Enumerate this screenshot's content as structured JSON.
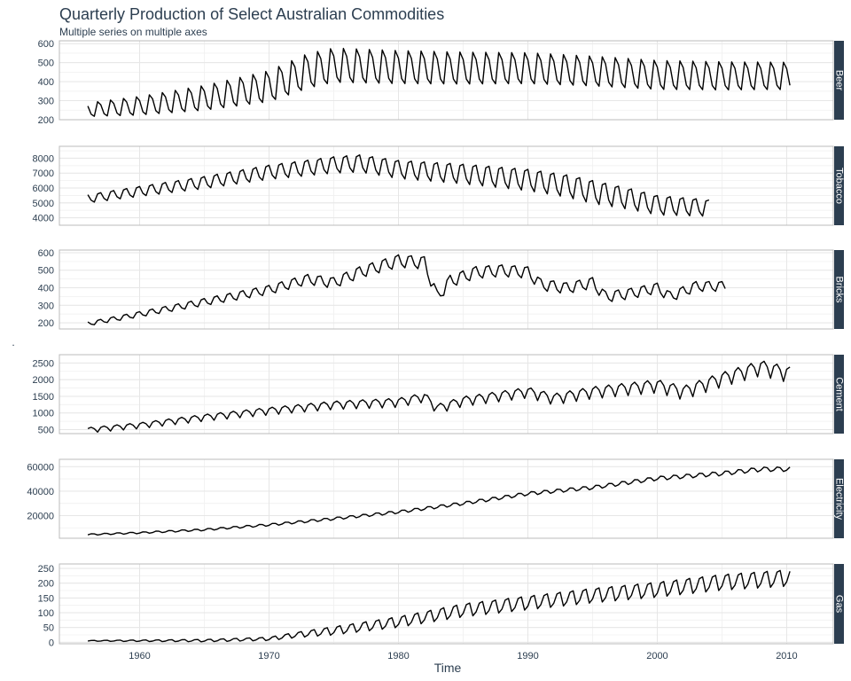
{
  "chart_data": {
    "type": "line",
    "title": "Quarterly Production of Select Australian Commodities",
    "subtitle": "Multiple series on multiple axes",
    "xlabel": "Time",
    "ylabel": ".",
    "xlim": [
      1953.8,
      2013.6
    ],
    "x_ticks": [
      1960,
      1970,
      1980,
      1990,
      2000,
      2010
    ],
    "x_tick_labels": [
      "1960",
      "1970",
      "1980",
      "1990",
      "2000",
      "2010"
    ],
    "grid": true,
    "colors": {
      "line": "#000000",
      "strip": "#2c3e50",
      "text": "#2c3e50",
      "grid": "#e6e6e6",
      "border": "#bbbbbb"
    },
    "facets": [
      {
        "name": "Beer",
        "ylim": [
          200,
          615
        ],
        "y_ticks": [
          200,
          300,
          400,
          500,
          600
        ],
        "y_tick_labels": [
          "200",
          "300",
          "400",
          "500",
          "600"
        ],
        "start": 1956.0,
        "end": 2010.25,
        "trend_knots": [
          [
            1956,
            250
          ],
          [
            1960,
            270
          ],
          [
            1965,
            310
          ],
          [
            1970,
            370
          ],
          [
            1973,
            450
          ],
          [
            1975,
            480
          ],
          [
            1980,
            470
          ],
          [
            1985,
            465
          ],
          [
            1990,
            465
          ],
          [
            1995,
            450
          ],
          [
            2000,
            430
          ],
          [
            2005,
            425
          ],
          [
            2010.25,
            425
          ]
        ],
        "seasonal": [
          40,
          -40,
          -60,
          70
        ],
        "seasonal_scale": [
          [
            1956,
            0.55
          ],
          [
            1973,
            1.4
          ],
          [
            1995,
            1.2
          ],
          [
            2010.25,
            1.1
          ]
        ]
      },
      {
        "name": "Tobacco",
        "ylim": [
          3500,
          8800
        ],
        "y_ticks": [
          4000,
          5000,
          6000,
          7000,
          8000
        ],
        "y_tick_labels": [
          "4000",
          "5000",
          "6000",
          "7000",
          "8000"
        ],
        "start": 1956.0,
        "end": 2004.0,
        "trend_knots": [
          [
            1956,
            5300
          ],
          [
            1960,
            5800
          ],
          [
            1965,
            6400
          ],
          [
            1970,
            7100
          ],
          [
            1975,
            7600
          ],
          [
            1977,
            7700
          ],
          [
            1980,
            7300
          ],
          [
            1985,
            7000
          ],
          [
            1990,
            6600
          ],
          [
            1993,
            6200
          ],
          [
            1995,
            5800
          ],
          [
            1998,
            5300
          ],
          [
            2000,
            4900
          ],
          [
            2004,
            4700
          ]
        ],
        "seasonal": [
          500,
          -300,
          -600,
          400
        ],
        "seasonal_scale": [
          [
            1956,
            0.5
          ],
          [
            1975,
            1.0
          ],
          [
            1995,
            1.4
          ],
          [
            2004,
            1.0
          ]
        ]
      },
      {
        "name": "Bricks",
        "ylim": [
          165,
          615
        ],
        "y_ticks": [
          200,
          300,
          400,
          500,
          600
        ],
        "y_tick_labels": [
          "200",
          "300",
          "400",
          "500",
          "600"
        ],
        "start": 1956.0,
        "end": 2005.25,
        "trend_knots": [
          [
            1956,
            195
          ],
          [
            1960,
            250
          ],
          [
            1965,
            320
          ],
          [
            1970,
            390
          ],
          [
            1973,
            450
          ],
          [
            1975,
            430
          ],
          [
            1977,
            490
          ],
          [
            1980,
            555
          ],
          [
            1982,
            545
          ],
          [
            1983,
            350
          ],
          [
            1984,
            440
          ],
          [
            1986,
            490
          ],
          [
            1988,
            500
          ],
          [
            1990,
            490
          ],
          [
            1991,
            420
          ],
          [
            1993,
            400
          ],
          [
            1995,
            430
          ],
          [
            1996,
            350
          ],
          [
            1998,
            370
          ],
          [
            2000,
            400
          ],
          [
            2001,
            350
          ],
          [
            2003,
            410
          ],
          [
            2005.25,
            410
          ]
        ],
        "seasonal": [
          25,
          -15,
          -30,
          20
        ],
        "seasonal_scale": [
          [
            1956,
            0.4
          ],
          [
            1980,
            1.3
          ],
          [
            2005.25,
            1.0
          ]
        ]
      },
      {
        "name": "Cement",
        "ylim": [
          380,
          2750
        ],
        "y_ticks": [
          500,
          1000,
          1500,
          2000,
          2500
        ],
        "y_tick_labels": [
          "500",
          "1000",
          "1500",
          "2000",
          "2500"
        ],
        "start": 1956.0,
        "end": 2010.25,
        "trend_knots": [
          [
            1956,
            500
          ],
          [
            1960,
            640
          ],
          [
            1965,
            880
          ],
          [
            1970,
            1080
          ],
          [
            1975,
            1260
          ],
          [
            1980,
            1340
          ],
          [
            1982,
            1500
          ],
          [
            1983,
            1150
          ],
          [
            1985,
            1380
          ],
          [
            1990,
            1650
          ],
          [
            1992,
            1450
          ],
          [
            1995,
            1650
          ],
          [
            2000,
            1850
          ],
          [
            2002,
            1650
          ],
          [
            2005,
            2050
          ],
          [
            2008,
            2400
          ],
          [
            2010.25,
            2200
          ]
        ],
        "seasonal": [
          60,
          120,
          20,
          -200
        ],
        "seasonal_scale": [
          [
            1956,
            0.5
          ],
          [
            1990,
            1.0
          ],
          [
            2010.25,
            1.5
          ]
        ]
      },
      {
        "name": "Electricity",
        "ylim": [
          1500,
          66000
        ],
        "y_ticks": [
          20000,
          40000,
          60000
        ],
        "y_tick_labels": [
          "20000",
          "40000",
          "60000"
        ],
        "start": 1956.0,
        "end": 2010.25,
        "trend_knots": [
          [
            1956,
            4500
          ],
          [
            1960,
            6000
          ],
          [
            1965,
            8500
          ],
          [
            1970,
            12500
          ],
          [
            1975,
            17500
          ],
          [
            1980,
            23000
          ],
          [
            1985,
            30000
          ],
          [
            1990,
            38000
          ],
          [
            1995,
            43000
          ],
          [
            2000,
            50500
          ],
          [
            2005,
            54500
          ],
          [
            2008,
            58000
          ],
          [
            2010.25,
            58000
          ]
        ],
        "seasonal": [
          -700,
          1300,
          900,
          -1500
        ],
        "seasonal_scale": [
          [
            1956,
            0.4
          ],
          [
            1990,
            1.0
          ],
          [
            2010.25,
            1.3
          ]
        ]
      },
      {
        "name": "Gas",
        "ylim": [
          -5,
          265
        ],
        "y_ticks": [
          0,
          50,
          100,
          150,
          200,
          250
        ],
        "y_tick_labels": [
          "0",
          "50",
          "100",
          "150",
          "200",
          "250"
        ],
        "start": 1956.0,
        "end": 2010.25,
        "trend_knots": [
          [
            1956,
            5
          ],
          [
            1965,
            6
          ],
          [
            1970,
            12
          ],
          [
            1972,
            25
          ],
          [
            1975,
            40
          ],
          [
            1980,
            70
          ],
          [
            1985,
            110
          ],
          [
            1990,
            135
          ],
          [
            1995,
            160
          ],
          [
            2000,
            180
          ],
          [
            2005,
            205
          ],
          [
            2010.25,
            220
          ]
        ],
        "seasonal": [
          -15,
          20,
          25,
          -30
        ],
        "seasonal_scale": [
          [
            1956,
            0.05
          ],
          [
            1970,
            0.2
          ],
          [
            1975,
            0.5
          ],
          [
            1985,
            0.8
          ],
          [
            2010.25,
            1.0
          ]
        ]
      }
    ]
  }
}
